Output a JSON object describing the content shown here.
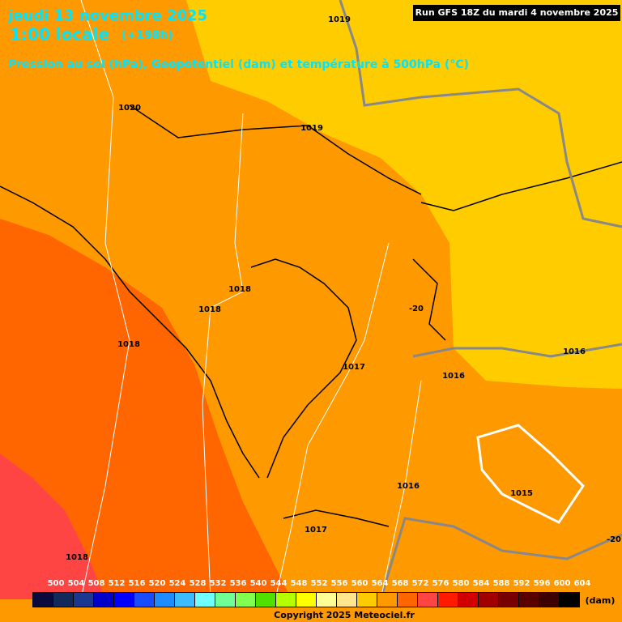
{
  "header": {
    "title": "jeudi 13 novembre 2025",
    "time": "1:00 locale",
    "lead": "(+198h)",
    "subtitle": "Pression au sol (hPa), Geopotentiel (dam) et température à 500hPa (°C)",
    "run": "Run GFS 18Z du mardi 4 novembre 2025"
  },
  "map": {
    "labels": [
      "1020",
      "1019",
      "1019",
      "1018",
      "1018",
      "1018",
      "1017",
      "1016",
      "1016",
      "1016",
      "1015",
      "1017",
      "1018",
      "-20",
      "-20"
    ]
  },
  "legend": {
    "values": [
      500,
      504,
      508,
      512,
      516,
      520,
      524,
      528,
      532,
      536,
      540,
      544,
      548,
      552,
      556,
      560,
      564,
      568,
      572,
      576,
      580,
      584,
      588,
      592,
      596,
      600,
      604
    ],
    "colors": [
      "#0a0a3c",
      "#102a5c",
      "#1a3890",
      "#0000c8",
      "#0000ff",
      "#1a4cff",
      "#1e8cff",
      "#3cbcff",
      "#70ffff",
      "#70ff96",
      "#80ff50",
      "#50e000",
      "#b4ff00",
      "#ffff00",
      "#ffff96",
      "#ffe68c",
      "#ffcc00",
      "#ff9900",
      "#ff6600",
      "#ff4444",
      "#ff1a00",
      "#d20000",
      "#a00000",
      "#780000",
      "#5a0000",
      "#3c0000",
      "#000000"
    ],
    "unit": "(dam)"
  },
  "footer": {
    "copyright": "Copyright 2025 Meteociel.fr"
  }
}
